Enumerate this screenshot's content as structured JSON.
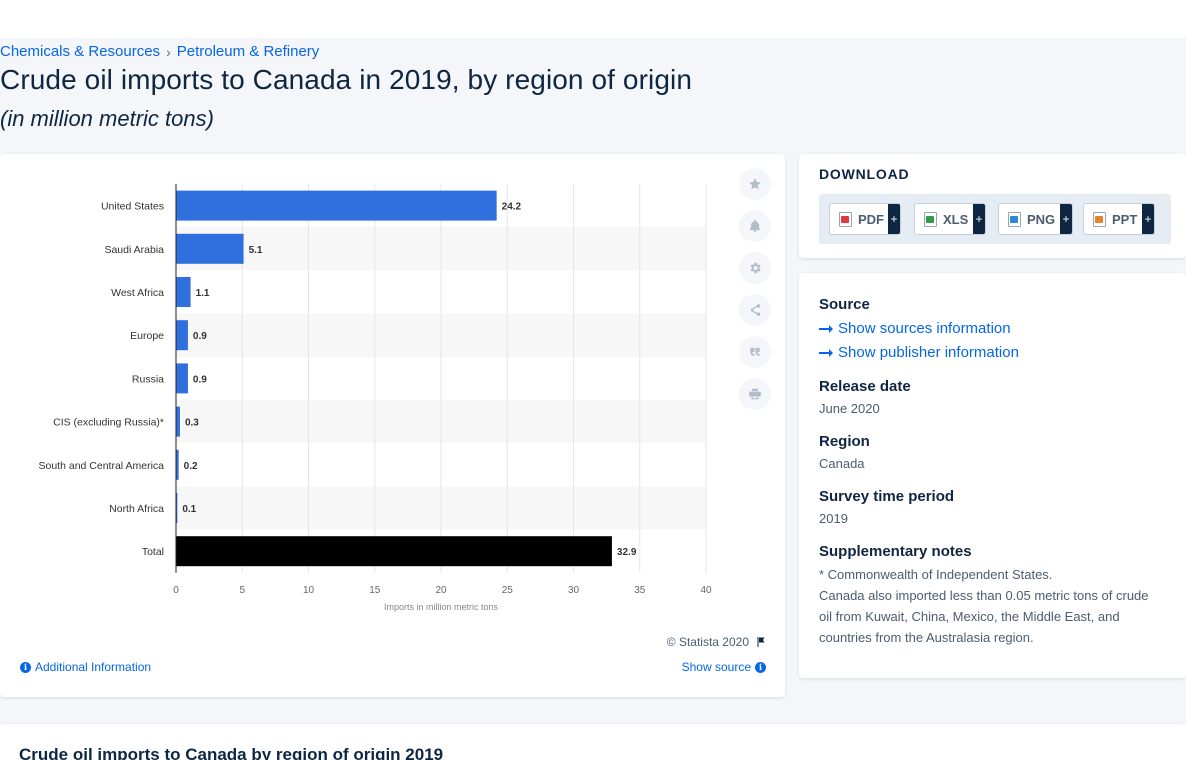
{
  "breadcrumb": {
    "items": [
      "Chemicals & Resources",
      "Petroleum & Refinery"
    ],
    "separator": "›"
  },
  "page": {
    "title": "Crude oil imports to Canada in 2019, by region of origin",
    "subtitle": "(in million metric tons)"
  },
  "chart_data": {
    "type": "bar",
    "orientation": "horizontal",
    "categories": [
      "United States",
      "Saudi Arabia",
      "West Africa",
      "Europe",
      "Russia",
      "CIS (excluding Russia)*",
      "South and Central America",
      "North Africa",
      "Total"
    ],
    "values": [
      24.2,
      5.1,
      1.1,
      0.9,
      0.9,
      0.3,
      0.2,
      0.1,
      32.9
    ],
    "data_labels": [
      "24.2",
      "5.1",
      "1.1",
      "0.9",
      "0.9",
      "0.3",
      "0.2",
      "0.1",
      "32.9"
    ],
    "xlabel": "Imports in million metric tons",
    "ylabel": "",
    "xlim": [
      0,
      40
    ],
    "xticks": [
      0,
      5,
      10,
      15,
      20,
      25,
      30,
      35,
      40
    ],
    "grid": true,
    "colors": {
      "bar": "#2f6fde",
      "total_bar": "#000000",
      "stripe": "#f7f7f7"
    }
  },
  "chart_footer": {
    "copyright": "© Statista 2020",
    "additional_info": "Additional Information",
    "show_source": "Show source"
  },
  "toolbar": {
    "icons": [
      "star-icon",
      "bell-icon",
      "gear-icon",
      "share-icon",
      "quote-icon",
      "print-icon"
    ]
  },
  "download": {
    "title": "DOWNLOAD",
    "buttons": [
      {
        "label": "PDF",
        "plus": "+",
        "color": "#e03a3a"
      },
      {
        "label": "XLS",
        "plus": "+",
        "color": "#2f9b45"
      },
      {
        "label": "PNG",
        "plus": "+",
        "color": "#2b8ad8"
      },
      {
        "label": "PPT",
        "plus": "+",
        "color": "#e8822a"
      }
    ]
  },
  "meta": {
    "source_heading": "Source",
    "sources_link": "Show sources information",
    "publisher_link": "Show publisher information",
    "release_heading": "Release date",
    "release_value": "June 2020",
    "region_heading": "Region",
    "region_value": "Canada",
    "period_heading": "Survey time period",
    "period_value": "2019",
    "notes_heading": "Supplementary notes",
    "notes_line1": "* Commonwealth of Independent States.",
    "notes_line2": "Canada also imported less than 0.05 metric tons of crude oil from Kuwait, China, Mexico, the Middle East, and countries from the Australasia region."
  },
  "bottom": {
    "title": "Crude oil imports to Canada by region of origin 2019"
  }
}
